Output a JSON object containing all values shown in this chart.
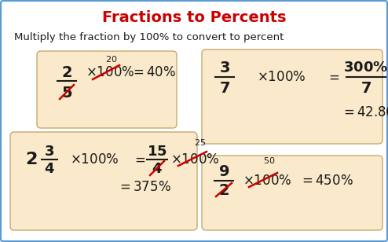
{
  "title": "Fractions to Percents",
  "title_color": "#cc0000",
  "subtitle": "Multiply the fraction by 100% to convert to percent",
  "bg_color": "white",
  "outer_border_color": "#5b9bd5",
  "box_color": "#faeacb",
  "box_edge_color": "#c8a96e",
  "text_color": "#1a1a1a",
  "red_color": "#cc0000",
  "fig_bg": "#dce8f5"
}
